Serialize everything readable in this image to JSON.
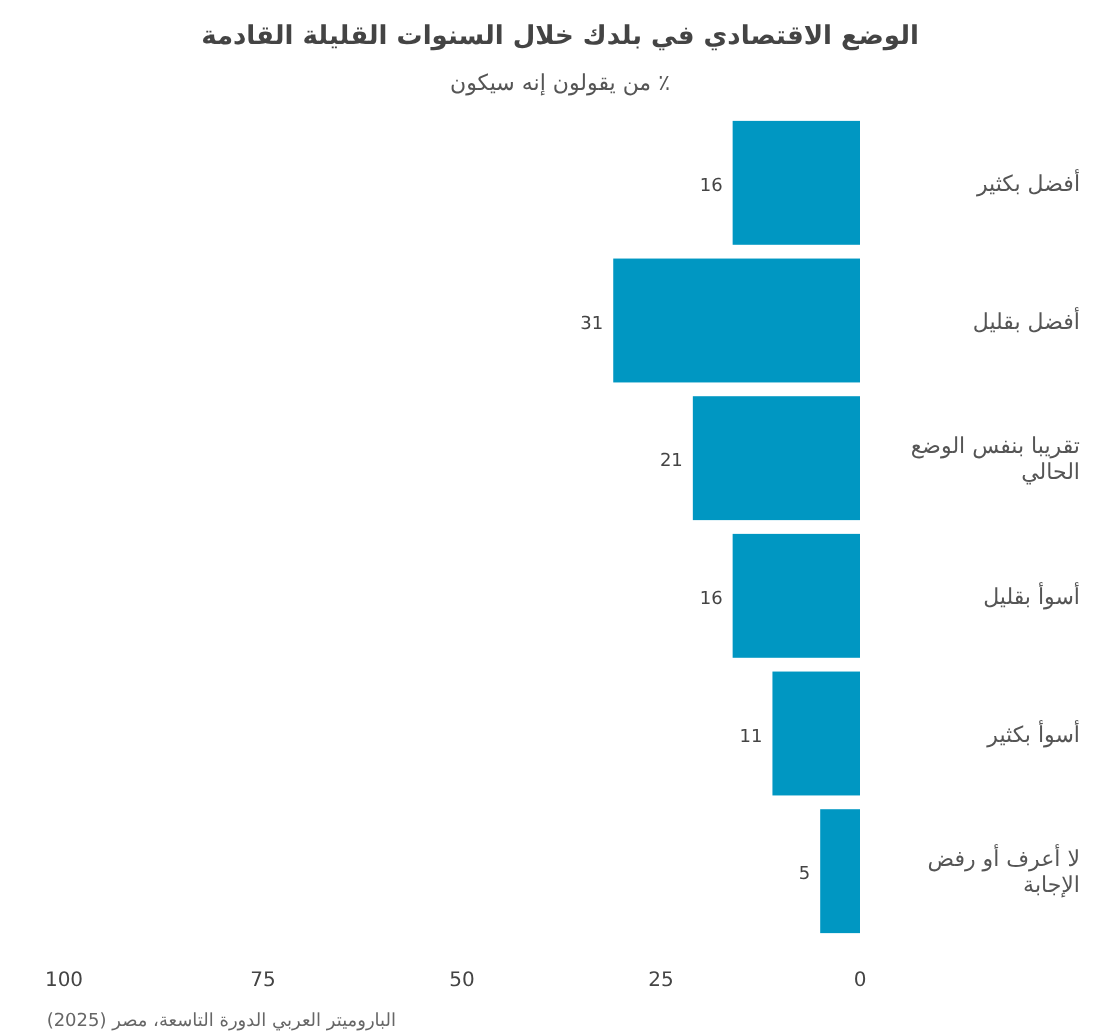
{
  "chart_data": {
    "type": "bar",
    "orientation": "horizontal",
    "title": "الوضع الاقتصادي في بلدك خلال السنوات القليلة القادمة",
    "subtitle": "٪ من يقولون إنه سيكون",
    "categories": [
      "أفضل بكثير",
      "أفضل بقليل",
      "تقريبا بنفس الوضع الحالي",
      "أسوأ بقليل",
      "أسوأ بكثير",
      "لا أعرف أو رفض الإجابة"
    ],
    "values": [
      16,
      31,
      21,
      16,
      11,
      5
    ],
    "color": "#0097c2",
    "data_labels": true,
    "xlim": [
      100,
      0
    ],
    "xticks": [
      100,
      75,
      50,
      25,
      0
    ],
    "grid": false,
    "annotations": [
      "الباروميتر العربي الدورة التاسعة، مصر (2025)"
    ]
  }
}
